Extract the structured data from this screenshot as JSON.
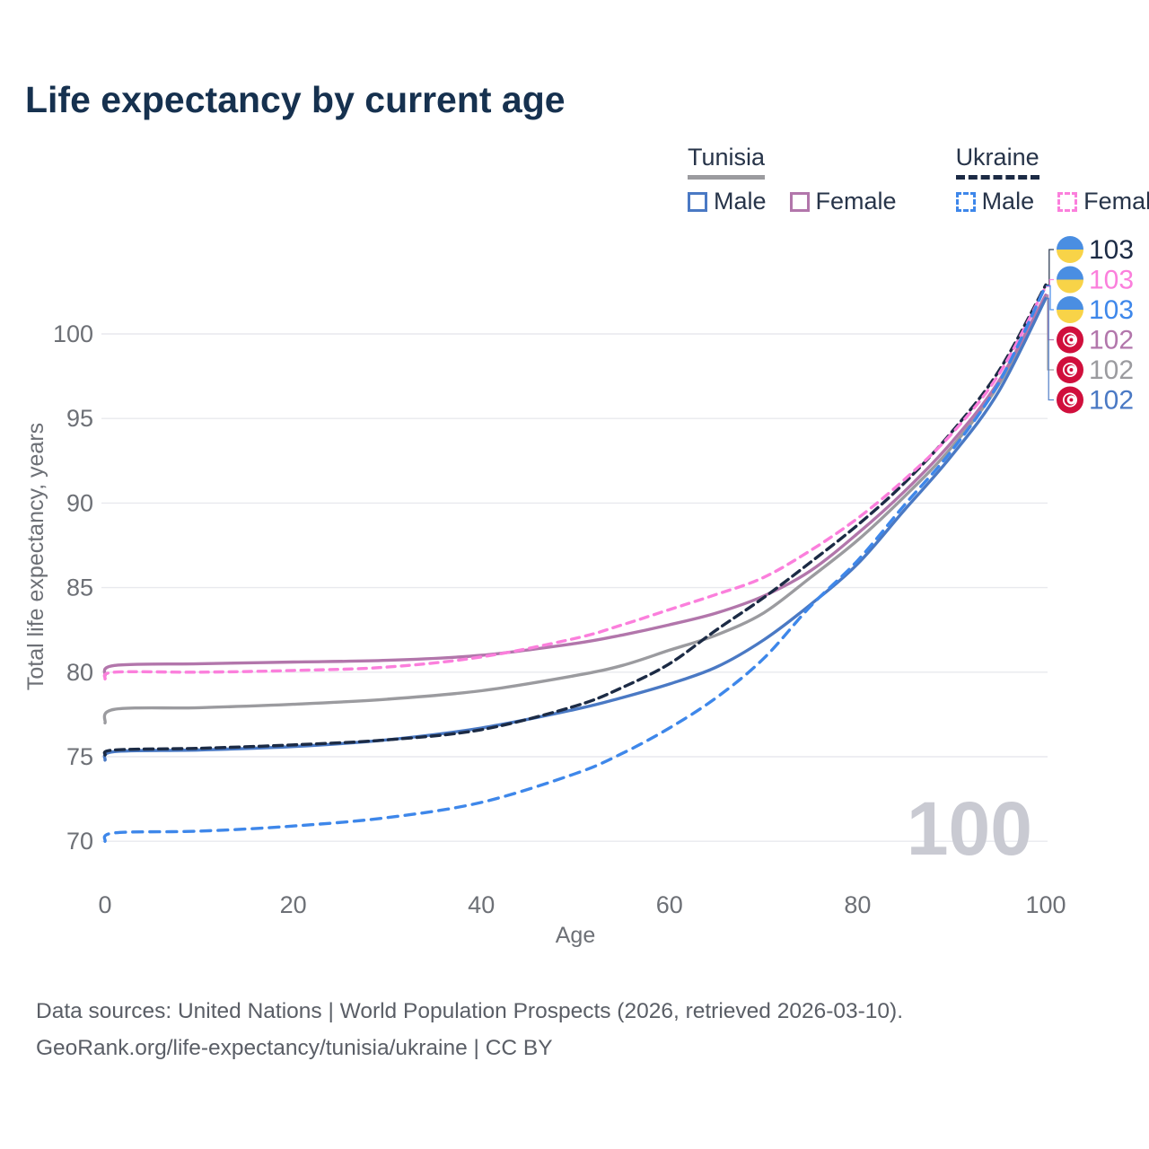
{
  "title": "Life expectancy by current age",
  "watermark": "100",
  "footer": {
    "line1": "Data sources: United Nations | World Population Prospects (2026, retrieved 2026-03-10).",
    "line2": "GeoRank.org/life-expectancy/tunisia/ukraine | CC BY"
  },
  "legend": {
    "groups": [
      {
        "name": "Tunisia",
        "underline_style": "solid",
        "underline_color": "#9b9b9f",
        "items": [
          {
            "label": "Male",
            "color": "#4a79c4",
            "dashed": false
          },
          {
            "label": "Female",
            "color": "#b276ab",
            "dashed": false
          }
        ]
      },
      {
        "name": "Ukraine",
        "underline_style": "dashed",
        "underline_color": "#1c2b45",
        "items": [
          {
            "label": "Male",
            "color": "#3e87ea",
            "dashed": true
          },
          {
            "label": "Female",
            "color": "#fb7fdc",
            "dashed": true
          }
        ]
      }
    ]
  },
  "chart_data": {
    "type": "line",
    "title": "Life expectancy by current age",
    "xlabel": "Age",
    "ylabel": "Total life expectancy, years",
    "x_ticks": [
      0,
      20,
      40,
      60,
      80,
      100
    ],
    "y_ticks": [
      70,
      75,
      80,
      85,
      90,
      95,
      100
    ],
    "xlim": [
      0,
      100
    ],
    "ylim": [
      68.5,
      104
    ],
    "grid": "horizontal",
    "legend_position": "top-right",
    "ages": [
      0,
      1,
      10,
      20,
      30,
      40,
      50,
      55,
      60,
      65,
      70,
      75,
      80,
      85,
      90,
      95,
      100
    ],
    "series": [
      {
        "name": "Tunisia — Both sexes",
        "country": "Tunisia",
        "sex": "both",
        "color": "#9b9b9f",
        "dashed": false,
        "flag": "tunisia",
        "end_label": "102",
        "label_row": 4,
        "values": [
          77.0,
          77.8,
          77.9,
          78.1,
          78.4,
          78.9,
          79.8,
          80.4,
          81.3,
          82.2,
          83.5,
          85.6,
          87.8,
          90.4,
          93.3,
          97.0,
          102.2
        ]
      },
      {
        "name": "Tunisia — Female",
        "country": "Tunisia",
        "sex": "female",
        "color": "#b276ab",
        "dashed": false,
        "flag": "tunisia",
        "end_label": "102",
        "label_row": 3,
        "values": [
          79.8,
          80.4,
          80.5,
          80.6,
          80.7,
          81.0,
          81.7,
          82.2,
          82.8,
          83.5,
          84.5,
          86.0,
          88.2,
          90.7,
          93.6,
          97.2,
          102.3
        ]
      },
      {
        "name": "Tunisia — Male",
        "country": "Tunisia",
        "sex": "male",
        "color": "#4a79c4",
        "dashed": false,
        "flag": "tunisia",
        "end_label": "102",
        "label_row": 5,
        "values": [
          74.8,
          75.3,
          75.4,
          75.6,
          76.0,
          76.7,
          77.8,
          78.5,
          79.3,
          80.3,
          81.9,
          84.0,
          86.4,
          89.6,
          92.8,
          96.6,
          102.1
        ]
      },
      {
        "name": "Ukraine — Both sexes",
        "country": "Ukraine",
        "sex": "both",
        "color": "#1c2b45",
        "dashed": true,
        "dash": "10 6",
        "flag": "ukraine",
        "end_label": "103",
        "label_row": 0,
        "values": [
          75.1,
          75.4,
          75.5,
          75.7,
          76.0,
          76.6,
          78.0,
          79.1,
          80.5,
          82.5,
          84.4,
          86.5,
          88.7,
          91.2,
          94.2,
          97.8,
          102.9
        ]
      },
      {
        "name": "Ukraine — Female",
        "country": "Ukraine",
        "sex": "female",
        "color": "#fb7fdc",
        "dashed": true,
        "dash": "9 7",
        "flag": "ukraine",
        "end_label": "103",
        "label_row": 1,
        "values": [
          79.6,
          80.0,
          80.0,
          80.1,
          80.3,
          80.9,
          82.0,
          82.8,
          83.7,
          84.6,
          85.6,
          87.2,
          89.1,
          91.4,
          94.1,
          97.6,
          102.8
        ]
      },
      {
        "name": "Ukraine — Male",
        "country": "Ukraine",
        "sex": "male",
        "color": "#3e87ea",
        "dashed": true,
        "dash": "11 8",
        "flag": "ukraine",
        "end_label": "103",
        "label_row": 2,
        "values": [
          70.0,
          70.5,
          70.6,
          70.9,
          71.4,
          72.3,
          74.0,
          75.2,
          76.7,
          78.5,
          80.8,
          83.9,
          86.6,
          89.9,
          93.1,
          97.1,
          102.85
        ]
      }
    ],
    "flag_colors": {
      "ukraine_blue": "#4a8ee2",
      "ukraine_yellow": "#f8d348",
      "tunisia_red": "#d00f3c"
    }
  }
}
